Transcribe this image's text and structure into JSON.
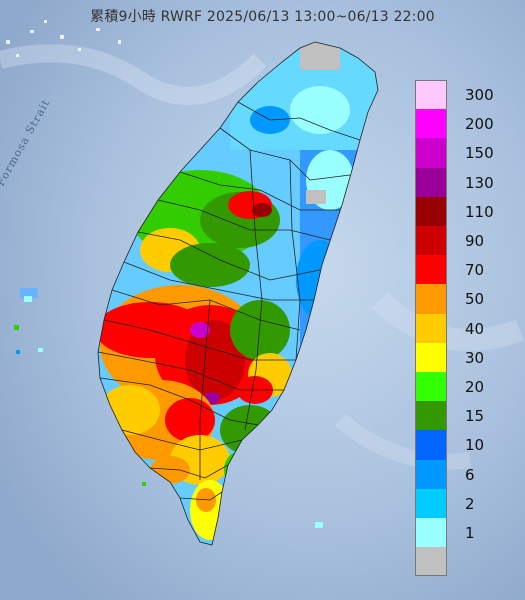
{
  "title": "累積9小時 RWRF 2025/06/13 13:00~06/13 22:00",
  "strait_label": "Formosa Strait",
  "legend": {
    "bins": [
      {
        "label": "300",
        "color": "#ffc8ff"
      },
      {
        "label": "200",
        "color": "#ff00ff"
      },
      {
        "label": "150",
        "color": "#cc00cc"
      },
      {
        "label": "130",
        "color": "#990099"
      },
      {
        "label": "110",
        "color": "#990000"
      },
      {
        "label": "90",
        "color": "#cc0000"
      },
      {
        "label": "70",
        "color": "#ff0000"
      },
      {
        "label": "50",
        "color": "#ff9900"
      },
      {
        "label": "40",
        "color": "#ffcc00"
      },
      {
        "label": "30",
        "color": "#ffff00"
      },
      {
        "label": "20",
        "color": "#33ff00"
      },
      {
        "label": "15",
        "color": "#339900"
      },
      {
        "label": "10",
        "color": "#0066ff"
      },
      {
        "label": "6",
        "color": "#0099ff"
      },
      {
        "label": "2",
        "color": "#00ccff"
      },
      {
        "label": "1",
        "color": "#99ffff"
      },
      {
        "label": "",
        "color": "#c0c0c0"
      }
    ]
  },
  "colors": {
    "sea": "#b4c9e2",
    "sea_dark": "#8eaacb",
    "boundary": "#222222"
  }
}
